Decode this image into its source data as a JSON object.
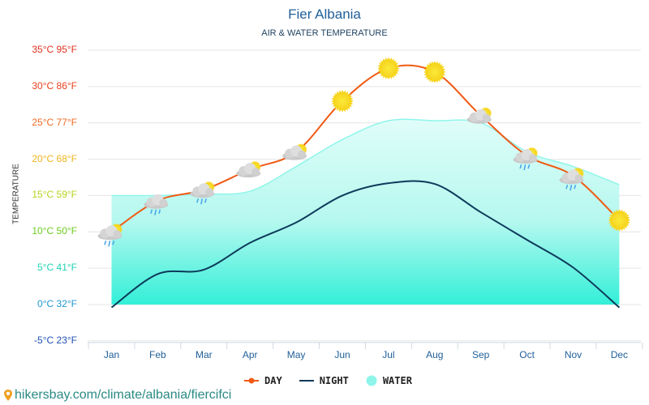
{
  "header": {
    "title": "Fier Albania",
    "subtitle": "AIR & WATER TEMPERATURE"
  },
  "footer": {
    "url": "hikersbay.com/climate/albania/fiercifci",
    "icon": "map-pin-icon"
  },
  "colors": {
    "day": "#f05a14",
    "night": "#0d3a5a",
    "water": "#8ff5ea",
    "title": "#1f5f99"
  },
  "chart_data": {
    "type": "line",
    "title": "Fier Albania",
    "subtitle": "AIR & WATER TEMPERATURE",
    "ylabel": "TEMPERATURE",
    "xlabel": "",
    "ylim": [
      -5,
      35
    ],
    "grid": true,
    "legend_position": "bottom",
    "categories": [
      "Jan",
      "Feb",
      "Mar",
      "Apr",
      "May",
      "Jun",
      "Jul",
      "Aug",
      "Sep",
      "Oct",
      "Nov",
      "Dec"
    ],
    "yticks": [
      {
        "value": 35,
        "label": "35°C 95°F",
        "color": "#e0301e"
      },
      {
        "value": 30,
        "label": "30°C 86°F",
        "color": "#e8401e"
      },
      {
        "value": 25,
        "label": "25°C 77°F",
        "color": "#ee6a22"
      },
      {
        "value": 20,
        "label": "20°C 68°F",
        "color": "#f0b41e"
      },
      {
        "value": 15,
        "label": "15°C 59°F",
        "color": "#b8d21e"
      },
      {
        "value": 10,
        "label": "10°C 50°F",
        "color": "#6ccc1e"
      },
      {
        "value": 5,
        "label": "5°C 41°F",
        "color": "#1ed2b4"
      },
      {
        "value": 0,
        "label": "0°C 32°F",
        "color": "#1e96d2"
      },
      {
        "value": -5,
        "label": "-5°C 23°F",
        "color": "#1e50b4"
      }
    ],
    "series": [
      {
        "name": "DAY",
        "values": [
          10.0,
          14.3,
          15.8,
          18.6,
          21.0,
          28.0,
          32.5,
          32.0,
          26.0,
          20.5,
          17.7,
          11.6
        ],
        "weather": [
          "rain-sun",
          "rain",
          "rain-sun",
          "cloud-sun",
          "cloud-sun",
          "sun",
          "sun",
          "sun",
          "cloud-sun",
          "rain-sun",
          "rain-sun",
          "sun"
        ]
      },
      {
        "name": "NIGHT",
        "values": [
          -0.4,
          4.2,
          4.8,
          8.5,
          11.3,
          15.0,
          16.7,
          16.6,
          12.7,
          8.9,
          5.1,
          -0.4
        ]
      },
      {
        "name": "WATER",
        "values": [
          15.0,
          15.0,
          15.2,
          15.6,
          19.0,
          22.7,
          25.3,
          25.3,
          25.0,
          21.0,
          19.0,
          16.5
        ]
      }
    ]
  }
}
